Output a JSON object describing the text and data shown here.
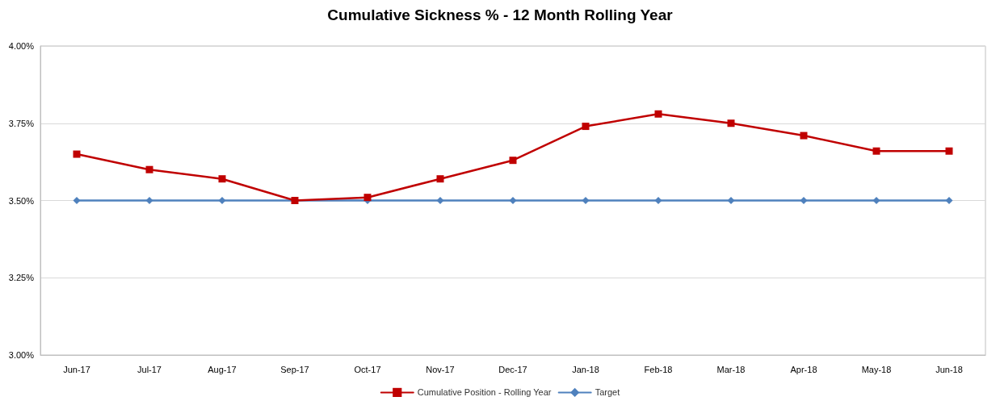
{
  "chart_data": {
    "type": "line",
    "title": "Cumulative Sickness % - 12 Month Rolling Year",
    "categories": [
      "Jun-17",
      "Jul-17",
      "Aug-17",
      "Sep-17",
      "Oct-17",
      "Nov-17",
      "Dec-17",
      "Jan-18",
      "Feb-18",
      "Mar-18",
      "Apr-18",
      "May-18",
      "Jun-18"
    ],
    "series": [
      {
        "name": "Cumulative Position - Rolling Year",
        "color": "#c00000",
        "marker": "square",
        "values": [
          3.65,
          3.6,
          3.57,
          3.5,
          3.51,
          3.57,
          3.63,
          3.74,
          3.78,
          3.75,
          3.71,
          3.66,
          3.66
        ]
      },
      {
        "name": "Target",
        "color": "#4f81bd",
        "marker": "diamond",
        "values": [
          3.5,
          3.5,
          3.5,
          3.5,
          3.5,
          3.5,
          3.5,
          3.5,
          3.5,
          3.5,
          3.5,
          3.5,
          3.5
        ]
      }
    ],
    "ylim": [
      3,
      4
    ],
    "yticks": [
      {
        "value": 3,
        "label": "3.00%"
      },
      {
        "value": 3.25,
        "label": "3.25%"
      },
      {
        "value": 3.5,
        "label": "3.50%"
      },
      {
        "value": 3.75,
        "label": "3.75%"
      },
      {
        "value": 4,
        "label": "4.00%"
      }
    ],
    "grid": "y",
    "legend": "bottom"
  }
}
